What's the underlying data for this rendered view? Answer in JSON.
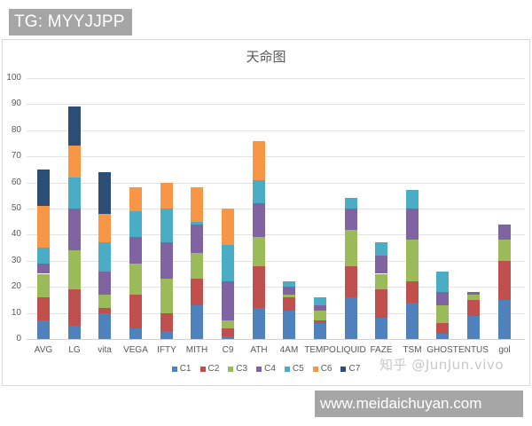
{
  "header": {
    "tag_text": "TG: MYYJJPP"
  },
  "footer": {
    "site_text": "www.meidaichuyan.com",
    "watermark": "知乎 @JunJun.vivo"
  },
  "chart_data": {
    "type": "bar",
    "stacked": true,
    "title": "天命图",
    "xlabel": "",
    "ylabel": "",
    "ylim": [
      0,
      100
    ],
    "yticks": [
      0,
      10,
      20,
      30,
      40,
      50,
      60,
      70,
      80,
      90,
      100
    ],
    "grid": true,
    "legend_position": "bottom",
    "categories": [
      "AVG",
      "LG",
      "vita",
      "VEGA",
      "IFTY",
      "MITH",
      "C9",
      "ATH",
      "4AM",
      "TEMPO",
      "LIQUID",
      "FAZE",
      "TSM",
      "GHOST",
      "ENTUS",
      "gol"
    ],
    "series": [
      {
        "name": "C1",
        "color": "#4F81BD",
        "values": [
          7,
          5,
          10,
          4,
          3,
          13,
          1,
          12,
          11,
          6,
          16,
          8,
          14,
          2,
          9,
          15
        ]
      },
      {
        "name": "C2",
        "color": "#C0504D",
        "values": [
          9,
          14,
          2,
          13,
          7,
          10,
          3,
          16,
          5,
          1,
          12,
          11,
          8,
          4,
          6,
          15
        ]
      },
      {
        "name": "C3",
        "color": "#9BBB59",
        "values": [
          9,
          15,
          5,
          12,
          13,
          10,
          3,
          11,
          1,
          4,
          14,
          6,
          16,
          7,
          2,
          8
        ]
      },
      {
        "name": "C4",
        "color": "#8064A2",
        "values": [
          4,
          16,
          9,
          10,
          14,
          11,
          15,
          13,
          3,
          2,
          8,
          7,
          12,
          5,
          1,
          6
        ]
      },
      {
        "name": "C5",
        "color": "#4BACC6",
        "values": [
          6,
          12,
          11,
          10,
          13,
          1,
          14,
          9,
          2,
          3,
          4,
          5,
          7,
          8,
          0,
          0
        ]
      },
      {
        "name": "C6",
        "color": "#F79646",
        "values": [
          16,
          12,
          11,
          9,
          10,
          13,
          14,
          15,
          0,
          0,
          0,
          0,
          0,
          0,
          0,
          0
        ]
      },
      {
        "name": "C7",
        "color": "#2C4D75",
        "values": [
          14,
          15,
          16,
          0,
          0,
          0,
          0,
          0,
          0,
          0,
          0,
          0,
          0,
          0,
          0,
          0
        ]
      }
    ],
    "totals": [
      65,
      89,
      64,
      58,
      60,
      58,
      50,
      76,
      22,
      16,
      54,
      37,
      57,
      26,
      18,
      44
    ]
  }
}
